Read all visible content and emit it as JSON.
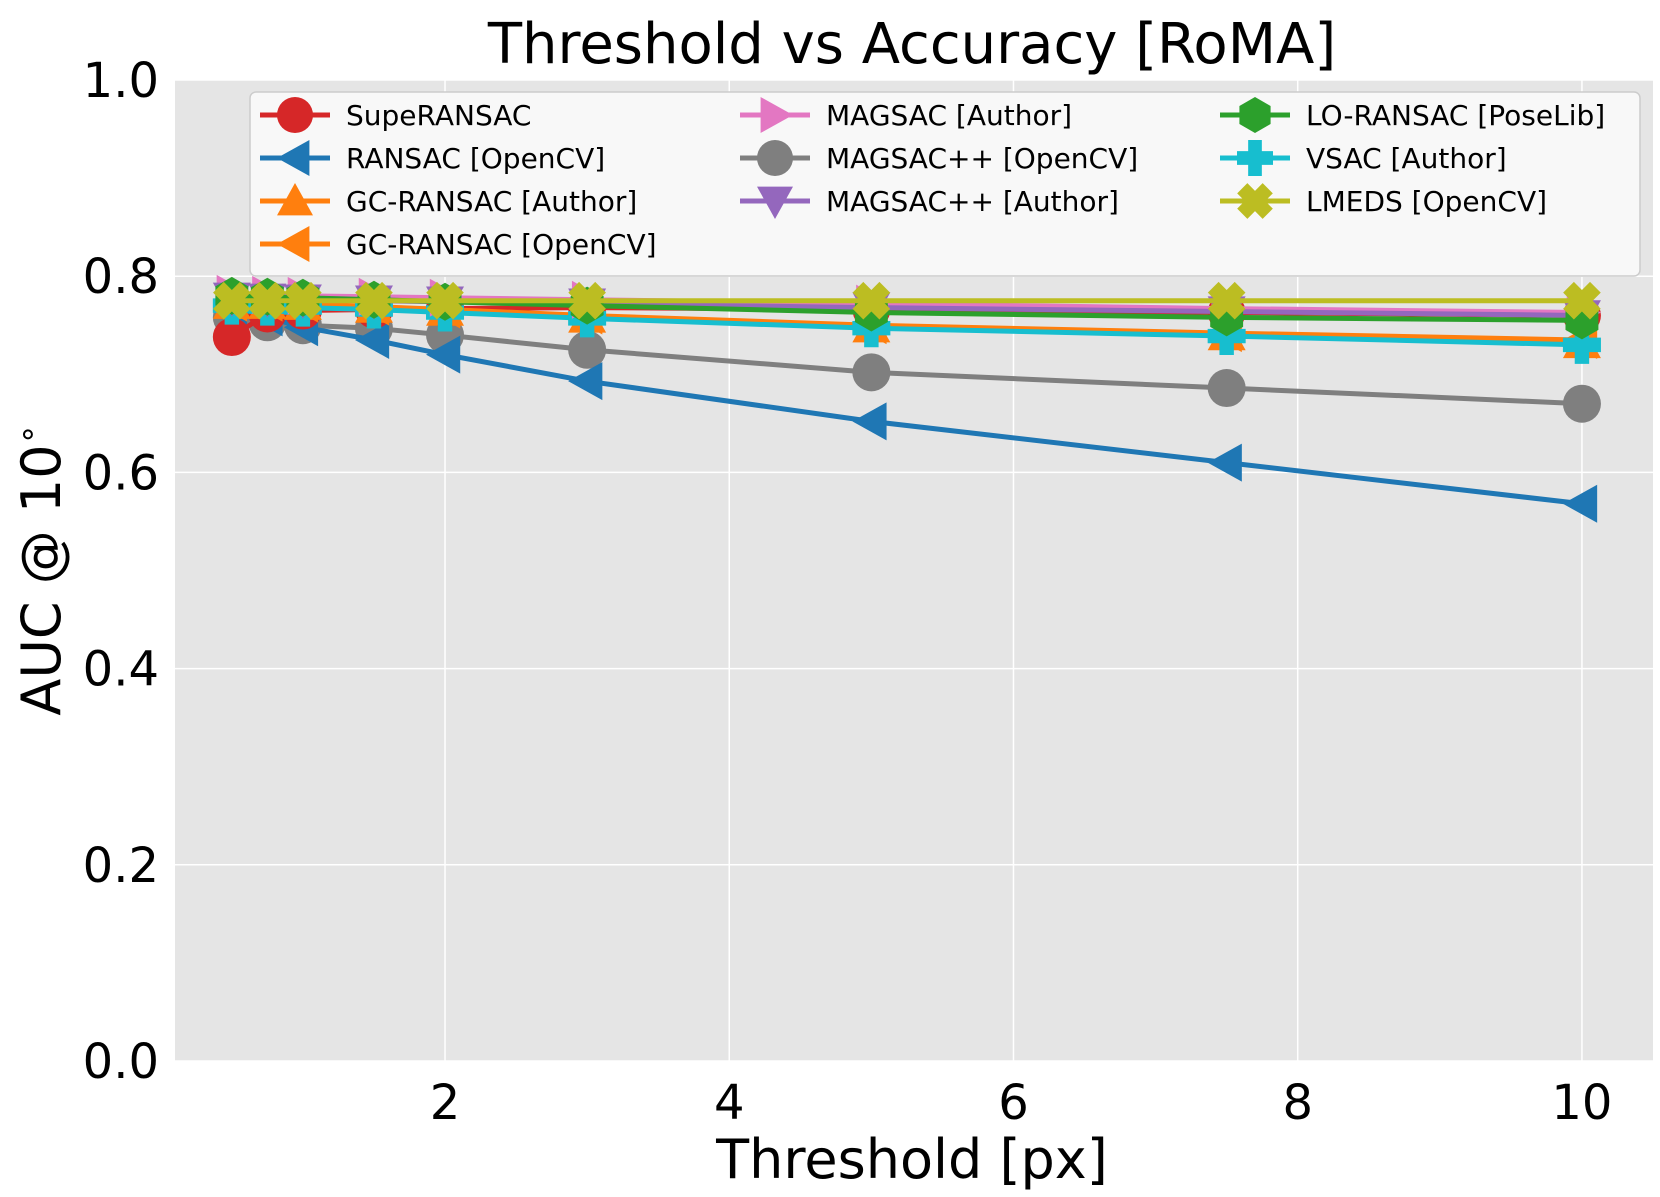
{
  "chart_data": {
    "type": "line",
    "title": "Threshold vs Accuracy [RoMA]",
    "xlabel": "Threshold [px]",
    "ylabel": "AUC @ 10",
    "ylabel_suffix": "∘",
    "xlim": [
      0.1,
      10.5
    ],
    "ylim": [
      0.0,
      1.0
    ],
    "xticks": [
      2,
      4,
      6,
      8,
      10
    ],
    "yticks": [
      0.0,
      0.2,
      0.4,
      0.6,
      0.8,
      1.0
    ],
    "xtick_labels": [
      "2",
      "4",
      "6",
      "8",
      "10"
    ],
    "ytick_labels": [
      "0.0",
      "0.2",
      "0.4",
      "0.6",
      "0.8",
      "1.0"
    ],
    "grid": true,
    "legend_position": "top",
    "x": [
      0.5,
      0.75,
      1.0,
      1.5,
      2.0,
      3.0,
      5.0,
      7.5,
      10.0
    ],
    "series": [
      {
        "name": "SupeRANSAC",
        "color": "#d62728",
        "marker": "circle",
        "values": [
          0.738,
          0.762,
          0.765,
          0.766,
          0.767,
          0.768,
          0.766,
          0.763,
          0.76
        ]
      },
      {
        "name": "RANSAC [OpenCV]",
        "color": "#1f77b4",
        "marker": "triangle-left",
        "values": [
          0.765,
          0.758,
          0.748,
          0.735,
          0.72,
          0.693,
          0.652,
          0.61,
          0.568
        ]
      },
      {
        "name": "GC-RANSAC [Author]",
        "color": "#ff7f0e",
        "marker": "triangle-up",
        "values": [
          0.772,
          0.772,
          0.771,
          0.768,
          0.765,
          0.758,
          0.748,
          0.74,
          0.732
        ]
      },
      {
        "name": "GC-RANSAC [OpenCV]",
        "color": "#ff7f0e",
        "marker": "triangle-left",
        "values": [
          0.773,
          0.773,
          0.772,
          0.769,
          0.766,
          0.76,
          0.75,
          0.742,
          0.735
        ]
      },
      {
        "name": "MAGSAC [Author]",
        "color": "#e377c2",
        "marker": "triangle-right",
        "values": [
          0.782,
          0.781,
          0.78,
          0.779,
          0.778,
          0.776,
          0.772,
          0.767,
          0.763
        ]
      },
      {
        "name": "MAGSAC++ [OpenCV]",
        "color": "#7f7f7f",
        "marker": "circle",
        "values": [
          0.758,
          0.753,
          0.75,
          0.747,
          0.74,
          0.725,
          0.702,
          0.686,
          0.67
        ]
      },
      {
        "name": "MAGSAC++ [Author]",
        "color": "#9467bd",
        "marker": "triangle-down",
        "values": [
          0.778,
          0.777,
          0.776,
          0.775,
          0.774,
          0.772,
          0.768,
          0.764,
          0.76
        ]
      },
      {
        "name": "LO-RANSAC [PoseLib]",
        "color": "#2ca02c",
        "marker": "hexagon",
        "values": [
          0.78,
          0.779,
          0.778,
          0.776,
          0.774,
          0.77,
          0.763,
          0.758,
          0.755
        ]
      },
      {
        "name": "VSAC [Author]",
        "color": "#17becf",
        "marker": "plus",
        "values": [
          0.77,
          0.769,
          0.768,
          0.766,
          0.763,
          0.757,
          0.747,
          0.739,
          0.73
        ]
      },
      {
        "name": "LMEDS [OpenCV]",
        "color": "#bcbd22",
        "marker": "x",
        "values": [
          0.775,
          0.775,
          0.775,
          0.775,
          0.775,
          0.775,
          0.775,
          0.775,
          0.775
        ]
      }
    ]
  }
}
